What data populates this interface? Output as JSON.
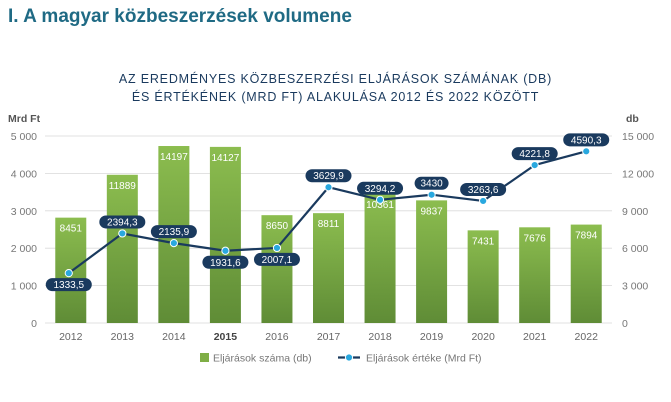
{
  "heading": "I. A magyar közbeszerzések volumene",
  "chart_data": {
    "type": "bar",
    "title": "AZ EREDMÉNYES KÖZBESZERZÉSI ELJÁRÁSOK SZÁMÁNAK (DB)",
    "subtitle": "ÉS ÉRTÉKÉNEK (MRD FT) ALAKULÁSA 2012 ÉS 2022 KÖZÖTT",
    "categories": [
      "2012",
      "2013",
      "2014",
      "2015",
      "2016",
      "2017",
      "2018",
      "2019",
      "2020",
      "2021",
      "2022"
    ],
    "bold_category": "2015",
    "left_axis": {
      "unit": "Mrd Ft",
      "ylim": [
        0,
        5000
      ],
      "ticks": [
        "0",
        "1 000",
        "2 000",
        "3 000",
        "4 000",
        "5 000"
      ]
    },
    "right_axis": {
      "unit": "db",
      "ylim": [
        0,
        15000
      ],
      "ticks": [
        "0",
        "3 000",
        "6 000",
        "9 000",
        "12 000",
        "15 000"
      ]
    },
    "grid": true,
    "legend_position": "bottom",
    "series": [
      {
        "name": "Eljárások száma (db)",
        "kind": "bar",
        "axis": "right",
        "color": "#7fae46",
        "values": [
          8451,
          11889,
          14197,
          14127,
          8650,
          8811,
          10361,
          9837,
          7431,
          7676,
          7894
        ],
        "labels": [
          "8451",
          "11889",
          "14197",
          "14127",
          "8650",
          "8811",
          "10361",
          "9837",
          "7431",
          "7676",
          "7894"
        ]
      },
      {
        "name": "Eljárások értéke (Mrd Ft)",
        "kind": "line",
        "axis": "left",
        "color": "#1a3a5e",
        "marker_color": "#29a8df",
        "values": [
          1333.5,
          2394.3,
          2135.9,
          1931.6,
          2007.1,
          3629.9,
          3294.2,
          3430,
          3263.6,
          4221.8,
          4590.3
        ],
        "labels": [
          "1333,5",
          "2394,3",
          "2135,9",
          "1931,6",
          "2007,1",
          "3629,9",
          "3294,2",
          "3430",
          "3263,6",
          "4221,8",
          "4590,3"
        ]
      }
    ]
  }
}
